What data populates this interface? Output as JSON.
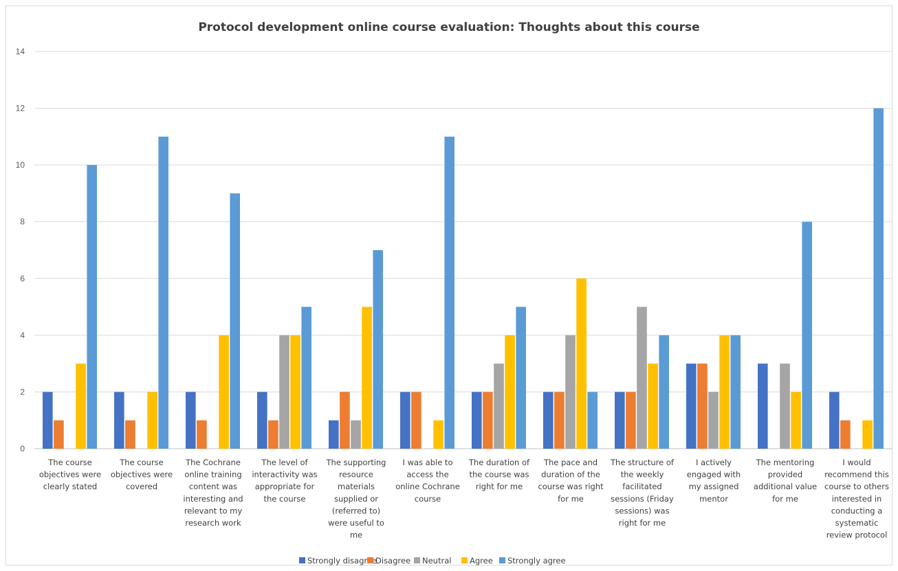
{
  "chart_data": {
    "type": "bar",
    "title": "Protocol development online course evaluation: Thoughts about this course",
    "xlabel": "",
    "ylabel": "",
    "ylim": [
      0,
      14
    ],
    "yticks": [
      0,
      2,
      4,
      6,
      8,
      10,
      12,
      14
    ],
    "grid": true,
    "legend_position": "bottom",
    "categories": [
      [
        "The course",
        "objectives were",
        "clearly stated"
      ],
      [
        "The course",
        "objectives were",
        "covered"
      ],
      [
        "The Cochrane",
        "online training",
        "content was",
        "interesting and",
        "relevant to my",
        "research work"
      ],
      [
        "The level of",
        "interactivity was",
        "appropriate for",
        "the course"
      ],
      [
        "The supporting",
        "resource",
        "materials",
        "supplied or",
        "(referred to)",
        "were useful to",
        "me"
      ],
      [
        "I was able to",
        "access the",
        "online Cochrane",
        "course"
      ],
      [
        "The duration of",
        "the course was",
        "right for me"
      ],
      [
        "The pace and",
        "duration of the",
        "course was right",
        "for me"
      ],
      [
        "The structure of",
        "the weekly",
        "facilitated",
        "sessions (Friday",
        "sessions) was",
        "right for me"
      ],
      [
        "I actively",
        "engaged with",
        "my assigned",
        "mentor"
      ],
      [
        "The mentoring",
        "provided",
        "additional value",
        "for me"
      ],
      [
        "I would",
        "recommend this",
        "course to others",
        "interested in",
        "conducting a",
        "systematic",
        "review protocol"
      ]
    ],
    "series": [
      {
        "name": "Strongly disagree",
        "color": "#4472c4",
        "values": [
          2,
          2,
          2,
          2,
          1,
          2,
          2,
          2,
          2,
          3,
          3,
          2
        ]
      },
      {
        "name": "Disagree",
        "color": "#ed7d31",
        "values": [
          1,
          1,
          1,
          1,
          2,
          2,
          2,
          2,
          2,
          3,
          0,
          1
        ]
      },
      {
        "name": "Neutral",
        "color": "#a5a5a5",
        "values": [
          0,
          0,
          0,
          4,
          1,
          0,
          3,
          4,
          5,
          2,
          3,
          0
        ]
      },
      {
        "name": "Agree",
        "color": "#ffc000",
        "values": [
          3,
          2,
          4,
          4,
          5,
          1,
          4,
          6,
          3,
          4,
          2,
          1
        ]
      },
      {
        "name": "Strongly agree",
        "color": "#5b9bd5",
        "values": [
          10,
          11,
          9,
          5,
          7,
          11,
          5,
          2,
          4,
          4,
          8,
          12
        ]
      }
    ],
    "gridline_color": "#d9d9d9",
    "axis_color": "#bfbfbf"
  }
}
